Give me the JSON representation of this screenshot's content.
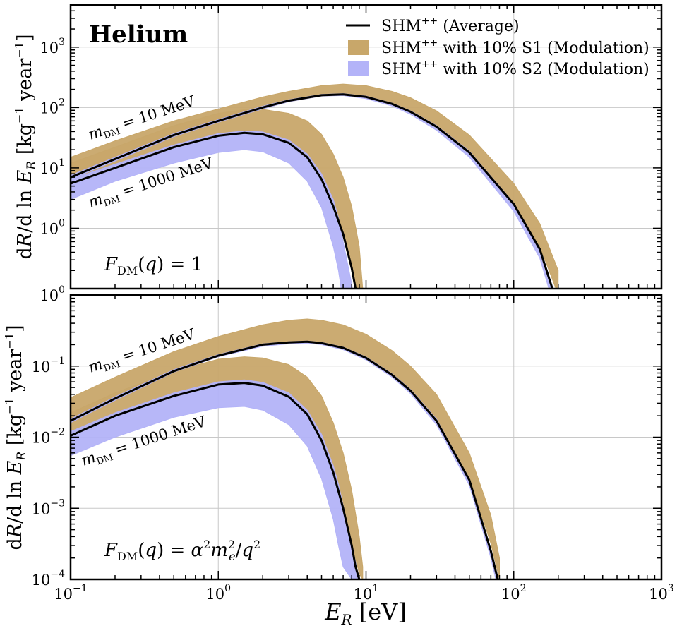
{
  "figure_title": "Helium",
  "x_axis": {
    "label": "E_R [eV]",
    "label_main": "E",
    "label_sub": "R",
    "label_unit": "[eV]",
    "range": [
      0.1,
      1000
    ],
    "scale": "log",
    "tick_bases": [
      "10",
      "10",
      "10",
      "10",
      "10"
    ],
    "tick_exponents": [
      "−1",
      "0",
      "1",
      "2",
      "3"
    ]
  },
  "legend": {
    "placement": "top-right",
    "entries": [
      {
        "label": "SHM++ (Average)",
        "base": "SHM",
        "sup": "++",
        "rest": " (Average)",
        "color": "#000000",
        "style": "line"
      },
      {
        "label": "SHM++ with 10% S1 (Modulation)",
        "base": "SHM",
        "sup": "++",
        "rest": " with 10% S1 (Modulation)",
        "color": "#c8a76a",
        "style": "band"
      },
      {
        "label": "SHM++ with 10% S2 (Modulation)",
        "base": "SHM",
        "sup": "++",
        "rest": " with 10% S2 (Modulation)",
        "color": "#b3b3f8",
        "style": "band"
      }
    ]
  },
  "colors": {
    "average": "#000000",
    "s1_band": "#c8a76a",
    "s2_band": "#b3b3f8",
    "grid": "#c8c8c8"
  },
  "chart_data": [
    {
      "type": "area",
      "panel": "top",
      "ylabel": "dR/d ln E_R [kg^-1 year^-1]",
      "ylim": [
        0.1,
        5000
      ],
      "yscale": "log",
      "y_tick_exponents": [
        "0",
        "1",
        "2",
        "3"
      ],
      "y_ticks": [
        1,
        10,
        100,
        1000
      ],
      "grid": true,
      "form_factor_label": "F_DM(q) = 1",
      "annotations": [
        "m_DM = 10 MeV",
        "m_DM = 1000 MeV"
      ],
      "x": [
        0.1,
        0.2,
        0.5,
        1,
        2,
        3,
        5,
        7,
        10,
        15,
        20,
        30,
        50,
        100,
        150,
        200
      ],
      "series": [
        {
          "name": "SHM++ (Average)",
          "mass": "10 MeV",
          "values": [
            7,
            14,
            35,
            60,
            100,
            130,
            160,
            165,
            150,
            115,
            85,
            48,
            18,
            2.5,
            0.45,
            0.05
          ]
        },
        {
          "name": "SHM++ with 10% S1 (Modulation)",
          "mass": "10 MeV",
          "lower": [
            6.5,
            13,
            33,
            57,
            95,
            125,
            155,
            160,
            145,
            112,
            83,
            47,
            18,
            2.6,
            0.5,
            0.08
          ],
          "upper": [
            15,
            28,
            60,
            95,
            150,
            185,
            230,
            245,
            230,
            185,
            145,
            88,
            35,
            5.5,
            1.2,
            0.2
          ]
        },
        {
          "name": "SHM++ with 10% S2 (Modulation)",
          "mass": "10 MeV",
          "lower": [
            6.5,
            13,
            33,
            57,
            95,
            125,
            155,
            158,
            140,
            106,
            77,
            42,
            15,
            1.9,
            0.32,
            0.03
          ],
          "upper": [
            7.5,
            15,
            37,
            63,
            105,
            135,
            165,
            170,
            155,
            118,
            88,
            50,
            19,
            2.6,
            0.47,
            0.055
          ]
        },
        {
          "name": "SHM++ (Average)",
          "mass": "1000 MeV",
          "x": [
            0.1,
            0.2,
            0.5,
            1,
            1.5,
            2,
            3,
            4,
            5,
            6,
            7,
            8,
            8.5,
            9
          ],
          "values": [
            5.5,
            10,
            22,
            34,
            38,
            36,
            26,
            15,
            6.5,
            2.3,
            0.8,
            0.22,
            0.1,
            0.01
          ]
        },
        {
          "name": "SHM++ with 10% S1 (Modulation)",
          "mass": "1000 MeV",
          "x": [
            0.1,
            0.2,
            0.5,
            1,
            1.5,
            2,
            3,
            4,
            5,
            6,
            7,
            8,
            9,
            9.5
          ],
          "lower": [
            6,
            11,
            23,
            36,
            40,
            38,
            28,
            16,
            7,
            2.5,
            0.9,
            0.25,
            0.05,
            0.01
          ],
          "upper": [
            12,
            22,
            50,
            80,
            92,
            93,
            80,
            60,
            36,
            17,
            7,
            2.3,
            0.5,
            0.1
          ]
        },
        {
          "name": "SHM++ with 10% S2 (Modulation)",
          "mass": "1000 MeV",
          "x": [
            0.1,
            0.2,
            0.5,
            1,
            1.5,
            2,
            3,
            4,
            5,
            6,
            6.5,
            7,
            8,
            9
          ],
          "lower": [
            3,
            6,
            12,
            18,
            20,
            18.5,
            12,
            6,
            2.2,
            0.5,
            0.2,
            0.06,
            0.02,
            0.01
          ],
          "upper": [
            6.5,
            11.5,
            24,
            37,
            41,
            39.5,
            29,
            17,
            8,
            3,
            1.5,
            0.6,
            0.12,
            0.02
          ]
        }
      ]
    },
    {
      "type": "area",
      "panel": "bottom",
      "ylabel": "dR/d ln E_R [kg^-1 year^-1]",
      "ylim": [
        0.0001,
        1
      ],
      "yscale": "log",
      "y_tick_exponents": [
        "−4",
        "−3",
        "−2",
        "−1",
        "0"
      ],
      "y_ticks": [
        0.0001,
        0.001,
        0.01,
        0.1,
        1
      ],
      "grid": true,
      "form_factor_label": "F_DM(q) = α²m_e²/q²",
      "annotations": [
        "m_DM = 10 MeV",
        "m_DM = 1000 MeV"
      ],
      "x": [
        0.1,
        0.2,
        0.5,
        1,
        2,
        3,
        4,
        5,
        7,
        10,
        15,
        20,
        30,
        50,
        70,
        80
      ],
      "series": [
        {
          "name": "SHM++ (Average)",
          "mass": "10 MeV",
          "values": [
            0.017,
            0.035,
            0.085,
            0.14,
            0.2,
            0.215,
            0.22,
            0.21,
            0.18,
            0.13,
            0.075,
            0.045,
            0.017,
            0.0025,
            0.00025,
            8e-05
          ]
        },
        {
          "name": "SHM++ with 10% S1 (Modulation)",
          "mass": "10 MeV",
          "lower": [
            0.016,
            0.033,
            0.082,
            0.135,
            0.195,
            0.21,
            0.215,
            0.205,
            0.175,
            0.127,
            0.074,
            0.045,
            0.017,
            0.0026,
            0.00032,
            0.0001
          ],
          "upper": [
            0.036,
            0.07,
            0.16,
            0.26,
            0.38,
            0.44,
            0.46,
            0.44,
            0.38,
            0.28,
            0.165,
            0.1,
            0.04,
            0.006,
            0.0008,
            0.0002
          ]
        },
        {
          "name": "SHM++ with 10% S2 (Modulation)",
          "mass": "10 MeV",
          "lower": [
            0.016,
            0.033,
            0.082,
            0.135,
            0.19,
            0.205,
            0.21,
            0.2,
            0.17,
            0.122,
            0.07,
            0.041,
            0.015,
            0.0021,
            0.0002,
            6e-05
          ],
          "upper": [
            0.018,
            0.037,
            0.089,
            0.145,
            0.205,
            0.22,
            0.225,
            0.215,
            0.185,
            0.134,
            0.078,
            0.047,
            0.018,
            0.0026,
            0.00026,
            8e-05
          ]
        },
        {
          "name": "SHM++ (Average)",
          "mass": "1000 MeV",
          "x": [
            0.1,
            0.2,
            0.5,
            1,
            1.5,
            2,
            3,
            4,
            5,
            6,
            7,
            8,
            8.5,
            9
          ],
          "values": [
            0.0105,
            0.02,
            0.038,
            0.055,
            0.058,
            0.053,
            0.037,
            0.021,
            0.009,
            0.0032,
            0.001,
            0.0003,
            0.00015,
            0.0001
          ]
        },
        {
          "name": "SHM++ with 10% S1 (Modulation)",
          "mass": "1000 MeV",
          "x": [
            0.1,
            0.2,
            0.5,
            1,
            1.5,
            2,
            3,
            4,
            5,
            6,
            7,
            8,
            9,
            9.5
          ],
          "lower": [
            0.011,
            0.021,
            0.04,
            0.057,
            0.06,
            0.055,
            0.039,
            0.022,
            0.0095,
            0.0034,
            0.0011,
            0.00033,
            0.00012,
            0.0001
          ],
          "upper": [
            0.022,
            0.042,
            0.085,
            0.125,
            0.135,
            0.13,
            0.105,
            0.07,
            0.038,
            0.016,
            0.006,
            0.0018,
            0.0004,
            0.00015
          ]
        },
        {
          "name": "SHM++ with 10% S2 (Modulation)",
          "mass": "1000 MeV",
          "x": [
            0.1,
            0.2,
            0.5,
            1,
            1.5,
            2,
            3,
            4,
            5,
            6,
            6.5,
            7,
            8,
            9
          ],
          "lower": [
            0.0055,
            0.01,
            0.019,
            0.026,
            0.027,
            0.024,
            0.015,
            0.0075,
            0.0026,
            0.0007,
            0.0003,
            0.00015,
            0.0001,
            0.0001
          ],
          "upper": [
            0.012,
            0.022,
            0.042,
            0.06,
            0.064,
            0.059,
            0.042,
            0.024,
            0.011,
            0.004,
            0.0022,
            0.0011,
            0.0003,
            0.0001
          ]
        }
      ]
    }
  ]
}
